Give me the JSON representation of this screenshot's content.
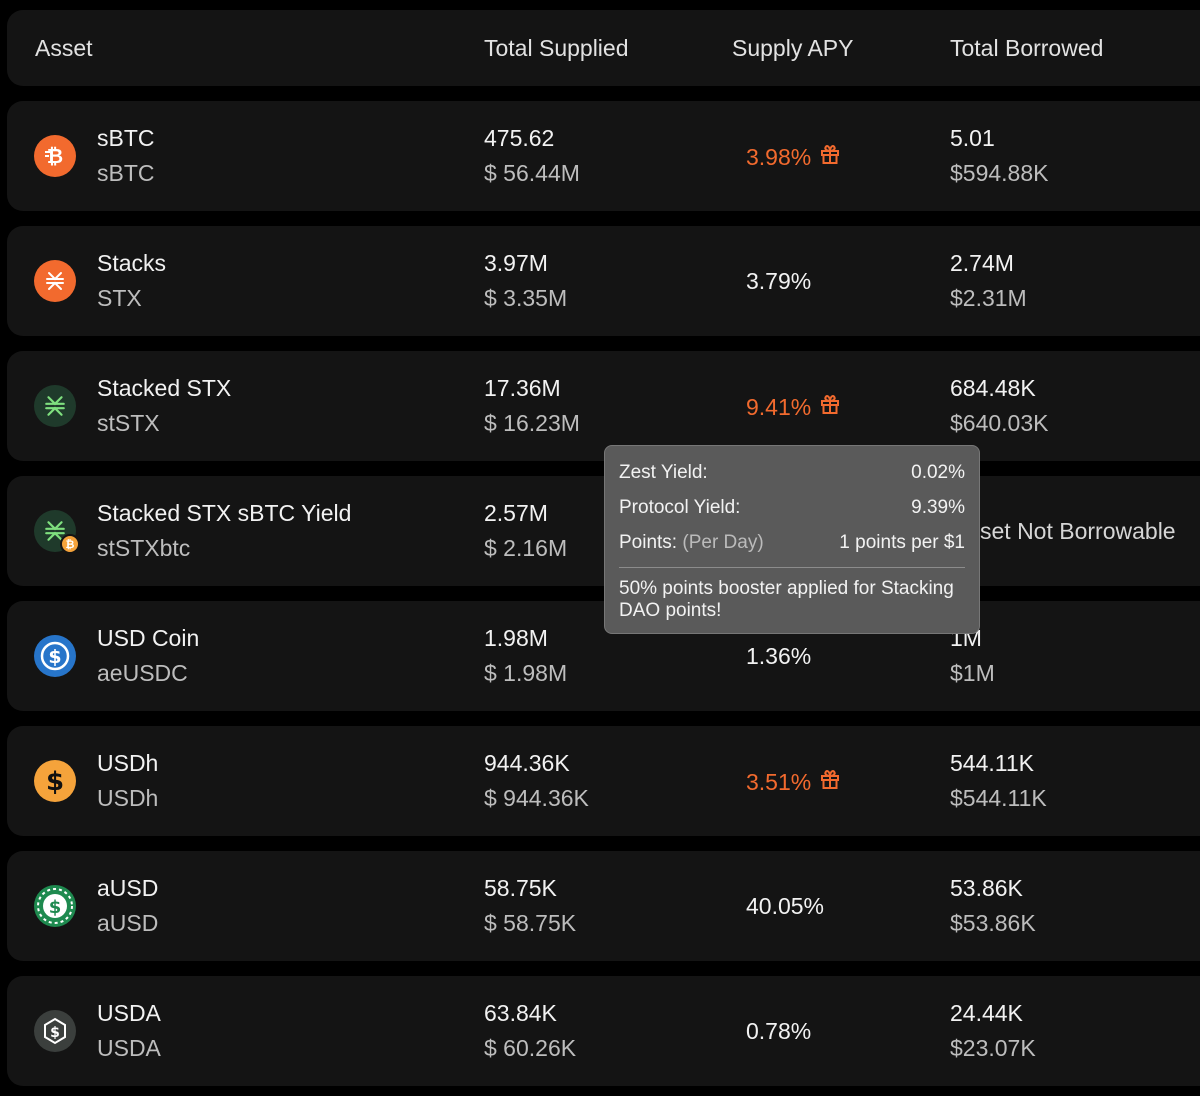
{
  "header": {
    "asset": "Asset",
    "total_supplied": "Total Supplied",
    "supply_apy": "Supply APY",
    "total_borrowed": "Total Borrowed"
  },
  "rows": [
    {
      "name": "sBTC",
      "symbol": "sBTC",
      "supplied": "475.62",
      "supplied_usd": "$ 56.44M",
      "apy": "3.98%",
      "borrowed": "5.01",
      "borrowed_usd": "$594.88K",
      "icon": "sbtc-icon",
      "icon_color": "#f26a2e"
    },
    {
      "name": "Stacks",
      "symbol": "STX",
      "supplied": "3.97M",
      "supplied_usd": "$ 3.35M",
      "apy": "3.79%",
      "borrowed": "2.74M",
      "borrowed_usd": "$2.31M",
      "icon": "stx-icon",
      "icon_color": "#f26a2e"
    },
    {
      "name": "Stacked STX",
      "symbol": "stSTX",
      "supplied": "17.36M",
      "supplied_usd": "$ 16.23M",
      "apy": "9.41%",
      "borrowed": "684.48K",
      "borrowed_usd": "$640.03K",
      "icon": "ststx-icon",
      "icon_color": "#1f3a2b"
    },
    {
      "name": "Stacked STX sBTC Yield",
      "symbol": "stSTXbtc",
      "supplied": "2.57M",
      "supplied_usd": "$ 2.16M",
      "borrowed_note": "set Not Borrowable",
      "icon": "ststxbtc-icon",
      "icon_color": "#1f3a2b"
    },
    {
      "name": "USD Coin",
      "symbol": "aeUSDC",
      "supplied": "1.98M",
      "supplied_usd": "$ 1.98M",
      "apy": "1.36%",
      "borrowed": "1M",
      "borrowed_usd": "$1M",
      "icon": "usdc-icon",
      "icon_color": "#2775ca"
    },
    {
      "name": "USDh",
      "symbol": "USDh",
      "supplied": "944.36K",
      "supplied_usd": "$ 944.36K",
      "apy": "3.51%",
      "borrowed": "544.11K",
      "borrowed_usd": "$544.11K",
      "icon": "usdh-icon",
      "icon_color": "#f5a33b"
    },
    {
      "name": "aUSD",
      "symbol": "aUSD",
      "supplied": "58.75K",
      "supplied_usd": "$ 58.75K",
      "apy": "40.05%",
      "borrowed": "53.86K",
      "borrowed_usd": "$53.86K",
      "icon": "ausd-icon",
      "icon_color": "#1e8a4f"
    },
    {
      "name": "USDA",
      "symbol": "USDA",
      "supplied": "63.84K",
      "supplied_usd": "$ 60.26K",
      "apy": "0.78%",
      "borrowed": "24.44K",
      "borrowed_usd": "$23.07K",
      "icon": "usda-icon",
      "icon_color": "#3b3f3d"
    }
  ],
  "tooltip": {
    "zest_label": "Zest Yield:",
    "zest_value": "0.02%",
    "protocol_label": "Protocol Yield:",
    "protocol_value": "9.39%",
    "points_label": "Points:",
    "points_period": "(Per Day)",
    "points_value": "1 points per $1",
    "note": "50% points booster applied for Stacking DAO points!"
  },
  "colors": {
    "accent_orange": "#f26a2e",
    "row_bg": "#141414",
    "tooltip_bg": "#5a5a5a"
  }
}
